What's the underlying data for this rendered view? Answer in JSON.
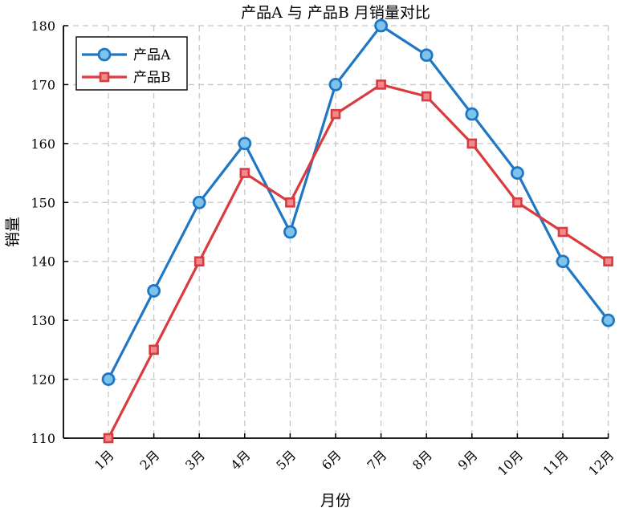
{
  "chart_data": {
    "type": "line",
    "title": "产品A 与 产品B 月销量对比",
    "xlabel": "月份",
    "ylabel": "销量",
    "categories": [
      "1月",
      "2月",
      "3月",
      "4月",
      "5月",
      "6月",
      "7月",
      "8月",
      "9月",
      "10月",
      "11月",
      "12月"
    ],
    "ylim": [
      110,
      180
    ],
    "yticks": [
      110,
      120,
      130,
      140,
      150,
      160,
      170,
      180
    ],
    "grid": true,
    "legend_position": "top-left",
    "series": [
      {
        "name": "产品A",
        "values": [
          120,
          135,
          150,
          160,
          145,
          170,
          180,
          175,
          165,
          155,
          140,
          130
        ],
        "color": "#1f77c4",
        "marker_fill": "#7ec3ec",
        "marker": "circle"
      },
      {
        "name": "产品B",
        "values": [
          110,
          125,
          140,
          155,
          150,
          165,
          170,
          168,
          160,
          150,
          145,
          140
        ],
        "color": "#d93b3f",
        "marker_fill": "#f08a8c",
        "marker": "square"
      }
    ]
  }
}
